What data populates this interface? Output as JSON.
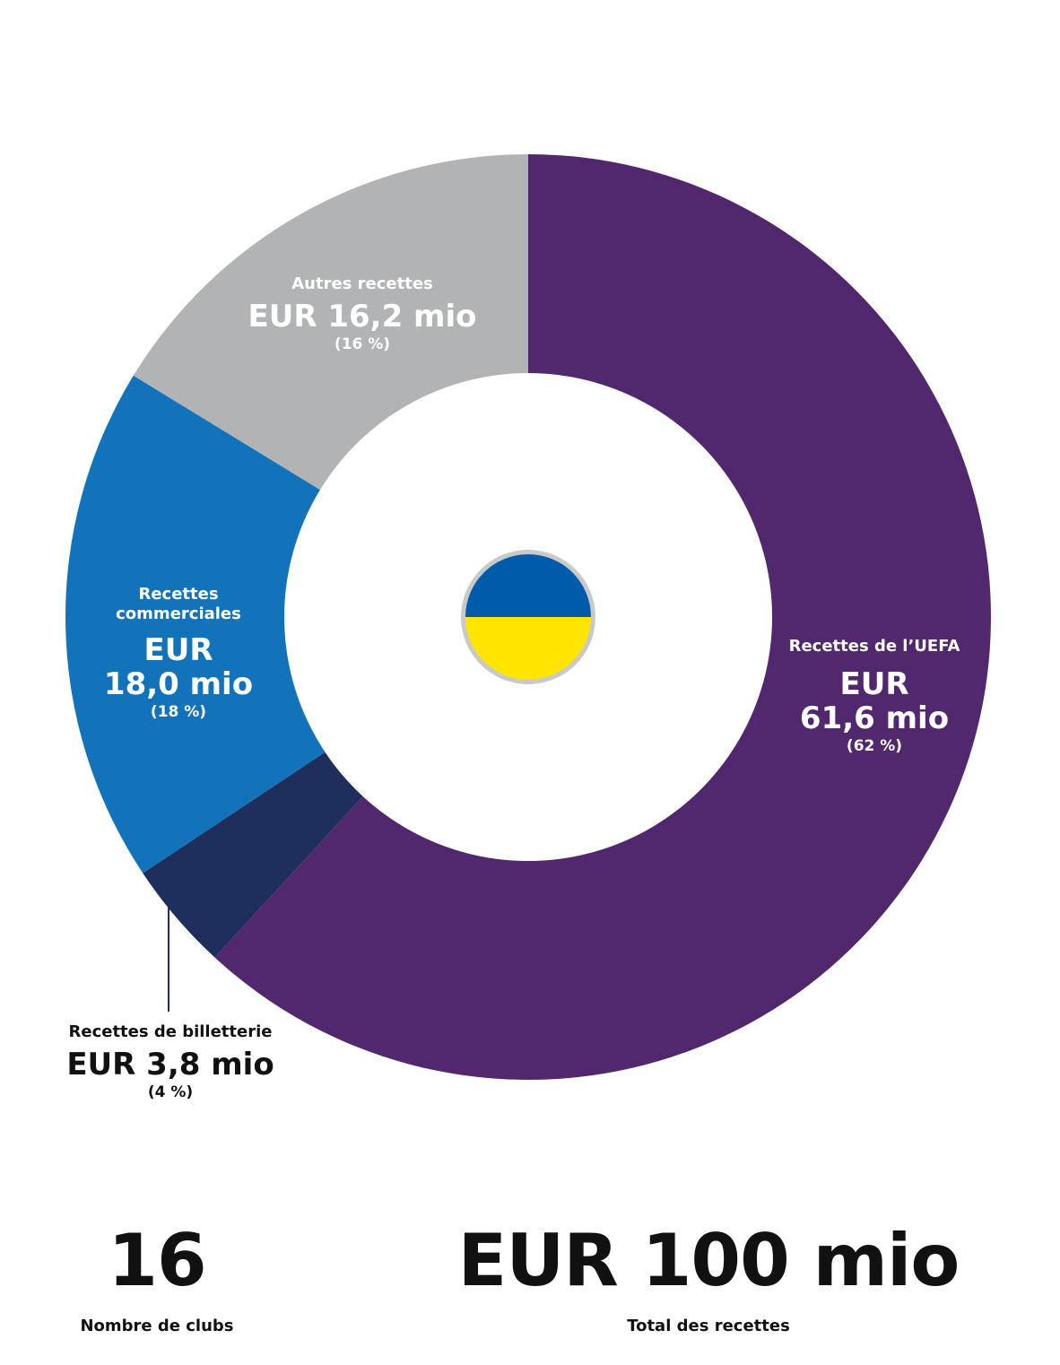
{
  "chart_data": {
    "type": "pie",
    "slices": [
      {
        "label": "Recettes de l’UEFA",
        "value": 61.6,
        "value_text": "EUR",
        "value_text2": "61,6 mio",
        "percent_text": "(62 %)",
        "color": "#51286E"
      },
      {
        "label": "Recettes de billetterie",
        "value": 3.8,
        "value_text": "EUR 3,8 mio",
        "percent_text": "(4 %)",
        "color": "#1E2E5D"
      },
      {
        "label_line1": "Recettes",
        "label_line2": "commerciales",
        "value": 18.0,
        "value_text": "EUR",
        "value_text2": "18,0 mio",
        "percent_text": "(18 %)",
        "color": "#1373BA"
      },
      {
        "label": "Autres recettes",
        "value": 16.2,
        "value_text": "EUR 16,2 mio",
        "percent_text": "(16 %)",
        "color": "#B1B3B4"
      }
    ],
    "total": 99.6
  },
  "flag": {
    "top_color": "#005BAA",
    "bottom_color": "#FFE500",
    "ring_color": "#C8C9CA"
  },
  "stats": {
    "clubs_value": "16",
    "clubs_label": "Nombre de clubs",
    "total_value": "EUR 100 mio",
    "total_label": "Total des recettes"
  }
}
